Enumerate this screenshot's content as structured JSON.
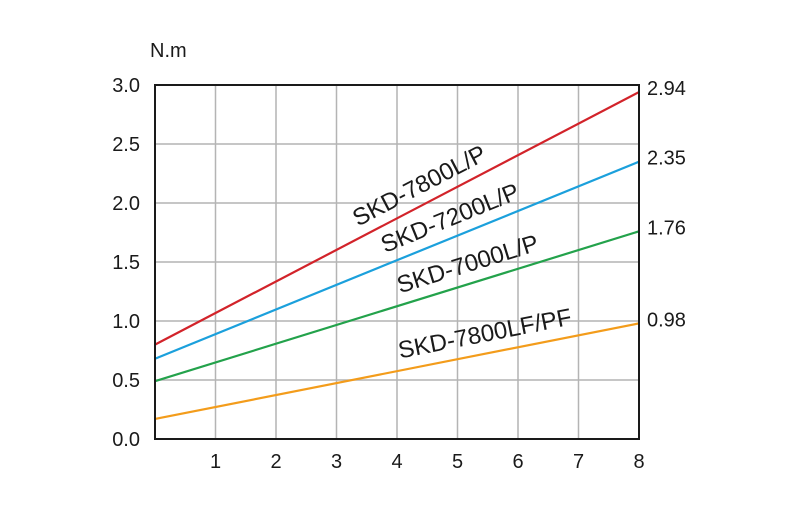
{
  "chart_data": {
    "type": "line",
    "ylabel": "N.m",
    "xlim": [
      0,
      8
    ],
    "ylim": [
      0,
      3.0
    ],
    "x_ticks": [
      "1",
      "2",
      "3",
      "4",
      "5",
      "6",
      "7",
      "8"
    ],
    "y_ticks": [
      "0.0",
      "0.5",
      "1.0",
      "1.5",
      "2.0",
      "2.5",
      "3.0"
    ],
    "grid": true,
    "colors": {
      "grid": "#b4b4b4",
      "axis": "#1a1a1a"
    },
    "series": [
      {
        "name": "SKD-7800L/P",
        "color": "#d2232a",
        "x": [
          0,
          8
        ],
        "y": [
          0.8,
          2.94
        ],
        "end_label": "2.94"
      },
      {
        "name": "SKD-7200L/P",
        "color": "#1ba0dc",
        "x": [
          0,
          8
        ],
        "y": [
          0.68,
          2.35
        ],
        "end_label": "2.35"
      },
      {
        "name": "SKD-7000L/P",
        "color": "#23a24b",
        "x": [
          0,
          8
        ],
        "y": [
          0.49,
          1.76
        ],
        "end_label": "1.76"
      },
      {
        "name": "SKD-7800LF/PF",
        "color": "#f39c1b",
        "x": [
          0,
          8
        ],
        "y": [
          0.17,
          0.98
        ],
        "end_label": "0.98"
      }
    ]
  }
}
